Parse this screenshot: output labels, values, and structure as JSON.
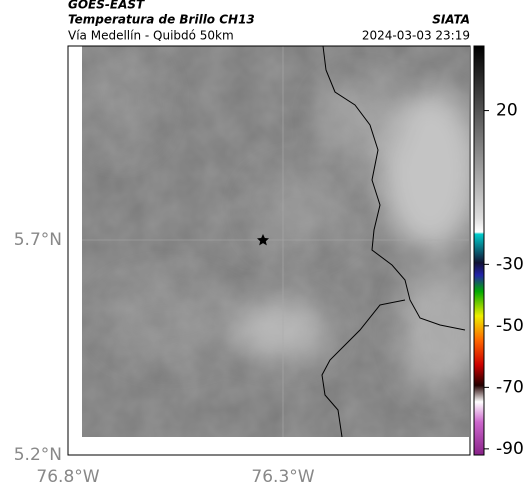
{
  "header": {
    "title": "GOES-EAST",
    "subtitle": "Temperatura de Brillo CH13",
    "source": "SIATA",
    "region": "Vía Medellín - Quibdó 50km",
    "timestamp": "2024-03-03 23:19"
  },
  "map": {
    "lat_labels": [
      "5.7°N",
      "5.2°N"
    ],
    "lon_labels": [
      "76.8°W",
      "76.3°W"
    ]
  },
  "colorbar": {
    "range": [
      41,
      -92
    ],
    "ticks": [
      20,
      -30,
      -50,
      -70,
      -90
    ]
  }
}
